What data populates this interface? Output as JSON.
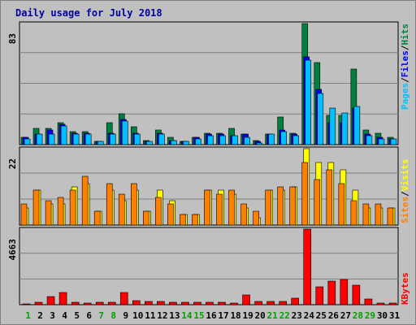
{
  "chart_data": {
    "type": "bar",
    "title": "Daily usage for July 2018",
    "categories": [
      "1",
      "2",
      "3",
      "4",
      "5",
      "6",
      "7",
      "8",
      "9",
      "10",
      "11",
      "12",
      "13",
      "14",
      "15",
      "16",
      "17",
      "18",
      "19",
      "20",
      "21",
      "22",
      "23",
      "24",
      "25",
      "26",
      "27",
      "28",
      "29",
      "30",
      "31"
    ],
    "weekend_days": [
      "1",
      "7",
      "8",
      "14",
      "15",
      "21",
      "22",
      "28",
      "29"
    ],
    "panels": [
      {
        "name": "top",
        "ymax_label": "83",
        "ymax": 83,
        "series": [
          {
            "name": "Hits",
            "color": "#008040",
            "values": [
              5,
              11,
              11,
              15,
              9,
              9,
              2,
              15,
              21,
              12,
              3,
              10,
              5,
              2,
              5,
              8,
              8,
              11,
              7,
              3,
              7,
              19,
              8,
              83,
              56,
              20,
              20,
              52,
              10,
              8,
              5
            ]
          },
          {
            "name": "Files",
            "color": "#0000ff",
            "values": [
              5,
              7,
              10,
              14,
              8,
              8,
              2,
              8,
              17,
              8,
              2,
              8,
              3,
              2,
              5,
              7,
              7,
              6,
              7,
              2,
              7,
              10,
              7,
              60,
              38,
              15,
              15,
              25,
              7,
              5,
              4
            ]
          },
          {
            "name": "Pages",
            "color": "#00c0ff",
            "values": [
              4,
              7,
              7,
              13,
              7,
              7,
              2,
              7,
              16,
              7,
              2,
              7,
              3,
              2,
              4,
              6,
              6,
              6,
              5,
              1,
              7,
              9,
              6,
              58,
              35,
              25,
              22,
              26,
              6,
              4,
              4
            ]
          }
        ],
        "legend": [
          "Pages",
          "Files",
          "Hits"
        ]
      },
      {
        "name": "middle",
        "ymax_label": "22",
        "ymax": 22,
        "series": [
          {
            "name": "Visits",
            "color": "#ffff00",
            "values": [
              5,
              10,
              6,
              6,
              11,
              12,
              4,
              10,
              7,
              10,
              4,
              10,
              7,
              3,
              3,
              10,
              10,
              9,
              5,
              2,
              10,
              10,
              11,
              22,
              18,
              18,
              16,
              10,
              5,
              5,
              5
            ]
          },
          {
            "name": "Sites",
            "color": "#ff8000",
            "values": [
              6,
              10,
              7,
              8,
              10,
              14,
              4,
              12,
              9,
              12,
              4,
              8,
              6,
              3,
              3,
              10,
              9,
              10,
              6,
              4,
              10,
              11,
              11,
              18,
              13,
              16,
              12,
              7,
              6,
              6,
              5
            ]
          }
        ],
        "legend": [
          "Sites",
          "Visits"
        ]
      },
      {
        "name": "bottom",
        "ymax_label": "4663",
        "ymax": 4663,
        "series": [
          {
            "name": "KBytes",
            "color": "#ff0000",
            "values": [
              60,
              150,
              480,
              760,
              150,
              80,
              150,
              150,
              770,
              260,
              220,
              200,
              150,
              150,
              150,
              160,
              150,
              80,
              620,
              200,
              220,
              220,
              400,
              4663,
              1100,
              1450,
              1550,
              1200,
              330,
              80,
              80
            ]
          }
        ],
        "legend": [
          "KBytes"
        ]
      }
    ]
  }
}
